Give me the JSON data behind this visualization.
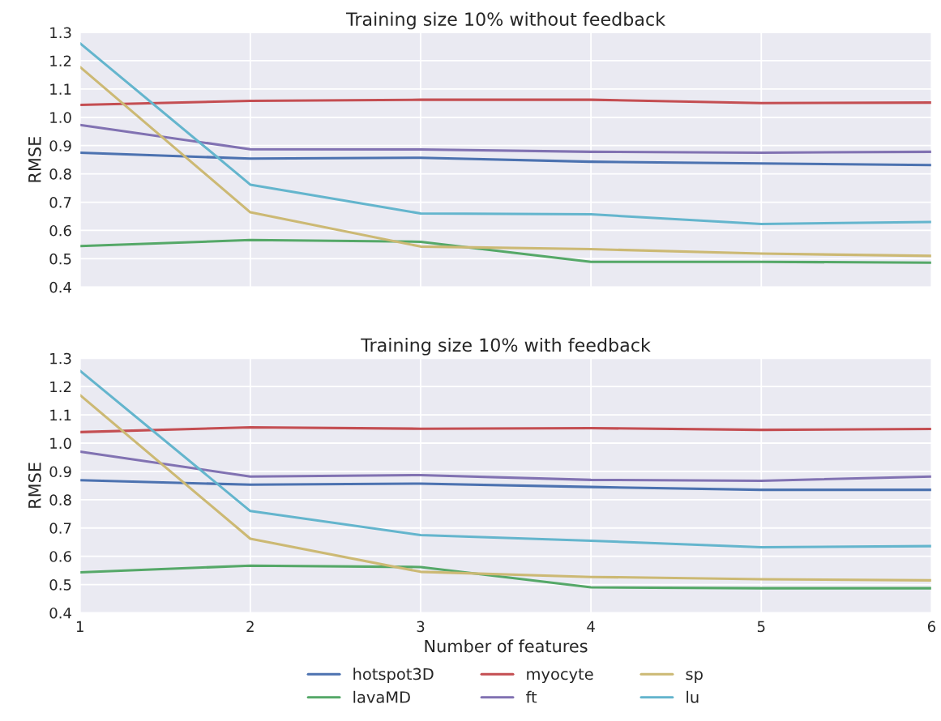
{
  "chart_data": [
    {
      "type": "line",
      "title": "Training size 10% without feedback",
      "ylabel": "RMSE",
      "x": [
        1,
        2,
        3,
        4,
        5,
        6
      ],
      "xlim": [
        1,
        6
      ],
      "xticks": [
        1,
        2,
        3,
        4,
        5,
        6
      ],
      "ylim": [
        0.4,
        1.3
      ],
      "yticks": [
        0.4,
        0.5,
        0.6,
        0.7,
        0.8,
        0.9,
        {
          "value": 1.0,
          "label": "1.0"
        },
        1.1,
        1.2,
        1.3
      ],
      "grid": true,
      "tick_labels": "y",
      "series": [
        {
          "color": "#4c72b0",
          "values": [
            0.875,
            0.854,
            0.857,
            0.843,
            0.837,
            0.831
          ]
        },
        {
          "color": "#55a868",
          "values": [
            0.545,
            0.566,
            0.56,
            0.489,
            0.489,
            0.486
          ]
        },
        {
          "color": "#c44e52",
          "values": [
            1.044,
            1.058,
            1.062,
            1.062,
            1.05,
            1.052
          ]
        },
        {
          "color": "#8172b2",
          "values": [
            0.973,
            0.887,
            0.886,
            0.878,
            0.875,
            0.878
          ]
        },
        {
          "color": "#ccb974",
          "values": [
            1.178,
            0.664,
            0.543,
            0.534,
            0.518,
            0.51
          ]
        },
        {
          "color": "#64b5cd",
          "values": [
            1.262,
            0.762,
            0.66,
            0.657,
            0.623,
            0.63
          ]
        }
      ]
    },
    {
      "type": "line",
      "title": "Training size 10% with feedback",
      "xlabel": "Number of features",
      "ylabel": "RMSE",
      "x": [
        1,
        2,
        3,
        4,
        5,
        6
      ],
      "xlim": [
        1,
        6
      ],
      "xticks": [
        1,
        2,
        3,
        4,
        5,
        6
      ],
      "ylim": [
        0.4,
        1.3
      ],
      "yticks": [
        0.4,
        0.5,
        0.6,
        0.7,
        0.8,
        0.9,
        {
          "value": 1.0,
          "label": "1.0"
        },
        1.1,
        1.2,
        1.3
      ],
      "grid": true,
      "legend": "bottom",
      "series": [
        {
          "name": "hotspot3D",
          "color": "#4c72b0",
          "values": [
            0.869,
            0.853,
            0.857,
            0.845,
            0.835,
            0.835
          ]
        },
        {
          "name": "lavaMD",
          "color": "#55a868",
          "values": [
            0.543,
            0.567,
            0.562,
            0.49,
            0.487,
            0.487
          ]
        },
        {
          "name": "myocyte",
          "color": "#c44e52",
          "values": [
            1.039,
            1.056,
            1.051,
            1.053,
            1.047,
            1.05
          ]
        },
        {
          "name": "ft",
          "color": "#8172b2",
          "values": [
            0.97,
            0.882,
            0.887,
            0.87,
            0.867,
            0.882
          ]
        },
        {
          "name": "sp",
          "color": "#ccb974",
          "values": [
            1.17,
            0.662,
            0.545,
            0.527,
            0.519,
            0.515
          ]
        },
        {
          "name": "lu",
          "color": "#64b5cd",
          "values": [
            1.256,
            0.76,
            0.675,
            0.655,
            0.632,
            0.636
          ]
        }
      ]
    }
  ]
}
